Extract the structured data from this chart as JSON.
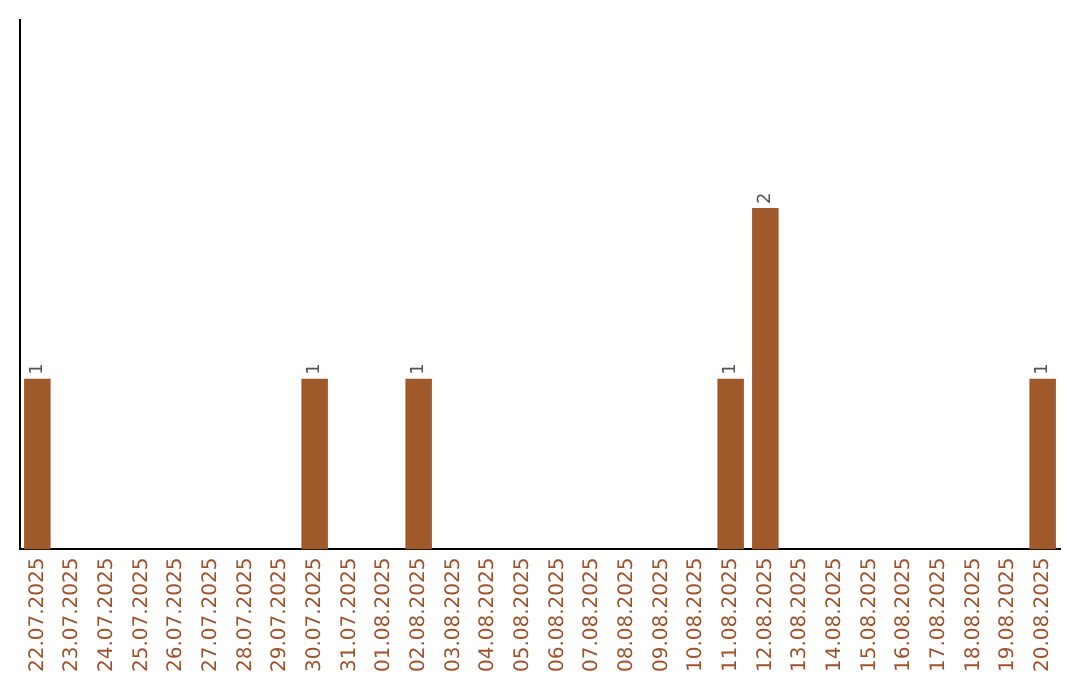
{
  "chart_data": {
    "type": "bar",
    "categories": [
      "22.07.2025",
      "23.07.2025",
      "24.07.2025",
      "25.07.2025",
      "26.07.2025",
      "27.07.2025",
      "28.07.2025",
      "29.07.2025",
      "30.07.2025",
      "31.07.2025",
      "01.08.2025",
      "02.08.2025",
      "03.08.2025",
      "04.08.2025",
      "05.08.2025",
      "06.08.2025",
      "07.08.2025",
      "08.08.2025",
      "09.08.2025",
      "10.08.2025",
      "11.08.2025",
      "12.08.2025",
      "13.08.2025",
      "14.08.2025",
      "15.08.2025",
      "16.08.2025",
      "17.08.2025",
      "18.08.2025",
      "19.08.2025",
      "20.08.2025"
    ],
    "values": [
      1,
      0,
      0,
      0,
      0,
      0,
      0,
      0,
      1,
      0,
      0,
      1,
      0,
      0,
      0,
      0,
      0,
      0,
      0,
      0,
      1,
      2,
      0,
      0,
      0,
      0,
      0,
      0,
      0,
      1
    ],
    "value_labels": [
      "1",
      null,
      null,
      null,
      null,
      null,
      null,
      null,
      "1",
      null,
      null,
      "1",
      null,
      null,
      null,
      null,
      null,
      null,
      null,
      null,
      "1",
      "2",
      null,
      null,
      null,
      null,
      null,
      null,
      null,
      "1"
    ],
    "color": "#a0592a",
    "ylim": [
      0,
      3.1
    ],
    "tick_labels": "x",
    "grid": false,
    "legend": false
  }
}
